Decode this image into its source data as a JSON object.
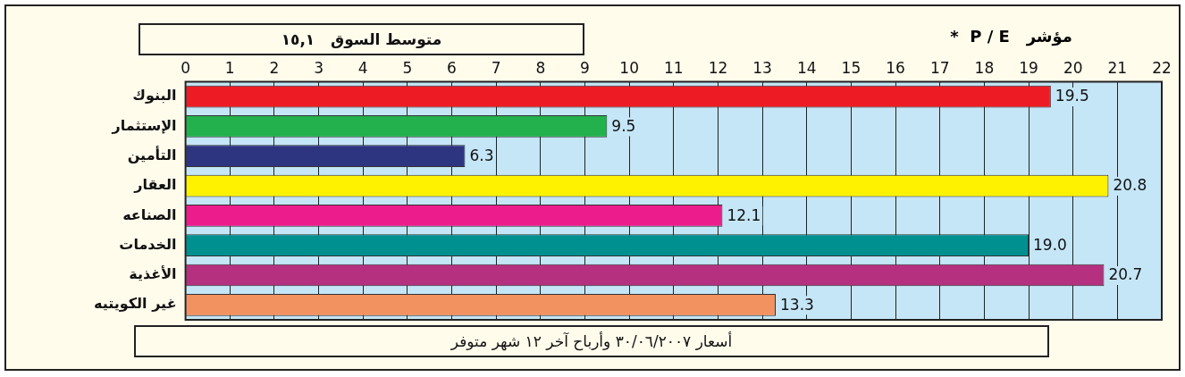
{
  "chart_data": {
    "type": "bar",
    "orientation": "horizontal",
    "title": "مؤشر   P / E  *",
    "annotations": [
      "متوسط السوق   ١٥,١",
      "أسعار ٣٠/٠٦/٢٠٠٧ وأرباح آخر ١٢ شهر متوفر"
    ],
    "categories": [
      "البنوك",
      "الإستثمار",
      "التأمين",
      "العقار",
      "الصناعه",
      "الخدمات",
      "الأغذية",
      "غير الكويتيه"
    ],
    "values": [
      19.5,
      9.5,
      6.3,
      20.8,
      12.1,
      19.0,
      20.7,
      13.3
    ],
    "colors": [
      "#ed1c24",
      "#22b14c",
      "#2e3580",
      "#fff200",
      "#ec1c8c",
      "#009090",
      "#b5307f",
      "#f29261"
    ],
    "value_labels": [
      "19.5",
      "9.5",
      "6.3",
      "20.8",
      "12.1",
      "19.0",
      "20.7",
      "13.3"
    ],
    "xlim": [
      0,
      22
    ],
    "xticks": [
      0,
      1,
      2,
      3,
      4,
      5,
      6,
      7,
      8,
      9,
      10,
      11,
      12,
      13,
      14,
      15,
      16,
      17,
      18,
      19,
      20,
      21,
      22
    ],
    "grid": "x"
  }
}
